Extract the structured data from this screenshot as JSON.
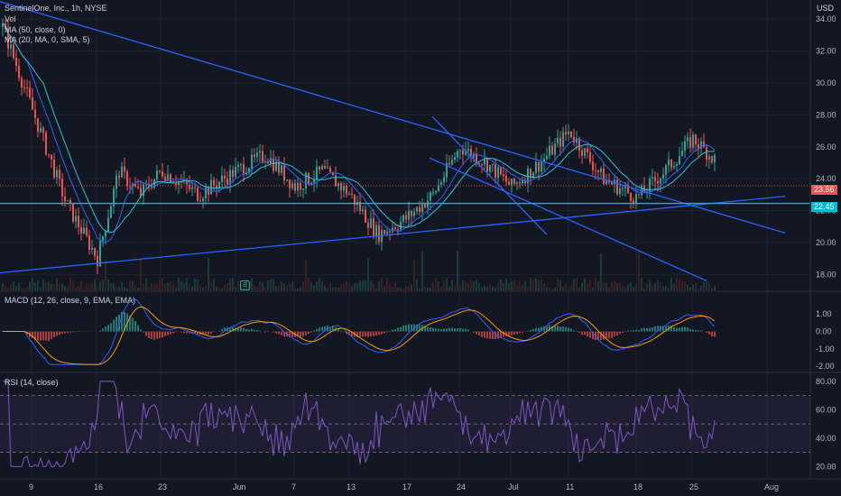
{
  "header": {
    "symbol": "SentinelOne, Inc., 1h, NYSE",
    "vol": "Vol",
    "ma50": "MA (50, close, 0)",
    "ma20": "MA (20, MA, 0, SMA, 5)",
    "currency": "USD"
  },
  "price_tags": {
    "last": "23.56",
    "hline": "22.45"
  },
  "earnings_marker": "E",
  "panes": {
    "macd_label": "MACD (12, 26, close, 9, EMA, EMA)",
    "rsi_label": "RSI (14, close)"
  },
  "colors": {
    "background": "#131722",
    "up": "#26a69a",
    "down": "#ef5350",
    "trendline": "#2962ff",
    "hline": "#00bcd4",
    "ma_fast": "#2962ff",
    "ma_slow": "#26c6da",
    "macd": "#2962ff",
    "signal": "#ff9800",
    "rsi": "#7e57c2"
  },
  "chart_data": [
    {
      "type": "candlestick",
      "title": "SentinelOne, Inc., 1h, NYSE",
      "x_ticks": [
        "9",
        "16",
        "23",
        "Jun",
        "7",
        "13",
        "17",
        "24",
        "Jul",
        "11",
        "18",
        "25",
        "Aug"
      ],
      "y_ticks": [
        "34.00",
        "32.00",
        "30.00",
        "28.00",
        "26.00",
        "24.00",
        "22.00",
        "20.00",
        "18.00"
      ],
      "ylim": [
        17,
        35.2
      ],
      "approx_close_path": [
        {
          "x": "9",
          "y": 33.5
        },
        {
          "x": "9",
          "y": 28.0
        },
        {
          "x": "9",
          "y": 22.5
        },
        {
          "x": "16",
          "y": 19.0
        },
        {
          "x": "16",
          "y": 24.5
        },
        {
          "x": "16",
          "y": 23.0
        },
        {
          "x": "23",
          "y": 24.5
        },
        {
          "x": "23",
          "y": 23.0
        },
        {
          "x": "Jun",
          "y": 24.5
        },
        {
          "x": "Jun",
          "y": 25.5
        },
        {
          "x": "7",
          "y": 23.5
        },
        {
          "x": "7",
          "y": 24.5
        },
        {
          "x": "13",
          "y": 23.0
        },
        {
          "x": "13",
          "y": 20.5
        },
        {
          "x": "17",
          "y": 21.5
        },
        {
          "x": "17",
          "y": 23.0
        },
        {
          "x": "24",
          "y": 26.0
        },
        {
          "x": "24",
          "y": 25.0
        },
        {
          "x": "Jul",
          "y": 23.5
        },
        {
          "x": "Jul",
          "y": 25.0
        },
        {
          "x": "11",
          "y": 27.0
        },
        {
          "x": "11",
          "y": 24.0
        },
        {
          "x": "18",
          "y": 22.8
        },
        {
          "x": "18",
          "y": 24.5
        },
        {
          "x": "25",
          "y": 26.5
        },
        {
          "x": "25",
          "y": 25.0
        },
        {
          "x": "25",
          "y": 23.56
        }
      ],
      "series": [
        {
          "name": "MA (50, close, 0)"
        },
        {
          "name": "MA (20, MA, 0, SMA, 5)"
        }
      ],
      "last_price": 23.56,
      "horizontal_line": 22.45,
      "trendlines": [
        {
          "from": {
            "x": "9",
            "y": 35.1
          },
          "to": {
            "x": "Aug",
            "y": 20.6
          }
        },
        {
          "from": {
            "x": "9",
            "y": 18.1
          },
          "to": {
            "x": "Aug",
            "y": 22.9
          }
        },
        {
          "from": {
            "x": "24",
            "y": 27.9
          },
          "to": {
            "x": "Jul",
            "y": 20.5
          }
        },
        {
          "from": {
            "x": "Jul",
            "y": 25.3
          },
          "to": {
            "x": "25",
            "y": 17.6
          }
        }
      ],
      "grid": true,
      "legend": "top-left"
    },
    {
      "type": "line",
      "title": "MACD (12, 26, close, 9, EMA, EMA)",
      "y_ticks": [
        "1.00",
        "0.00",
        "-1.00",
        "-2.00"
      ],
      "ylim": [
        -2.3,
        2.2
      ],
      "series": [
        {
          "name": "MACD"
        },
        {
          "name": "Signal"
        },
        {
          "name": "Histogram"
        }
      ]
    },
    {
      "type": "line",
      "title": "RSI (14, close)",
      "y_ticks": [
        "80.00",
        "60.00",
        "40.00",
        "20.00"
      ],
      "ylim": [
        12,
        85
      ],
      "bands": [
        30,
        50,
        70
      ],
      "series": [
        {
          "name": "RSI"
        }
      ]
    }
  ]
}
